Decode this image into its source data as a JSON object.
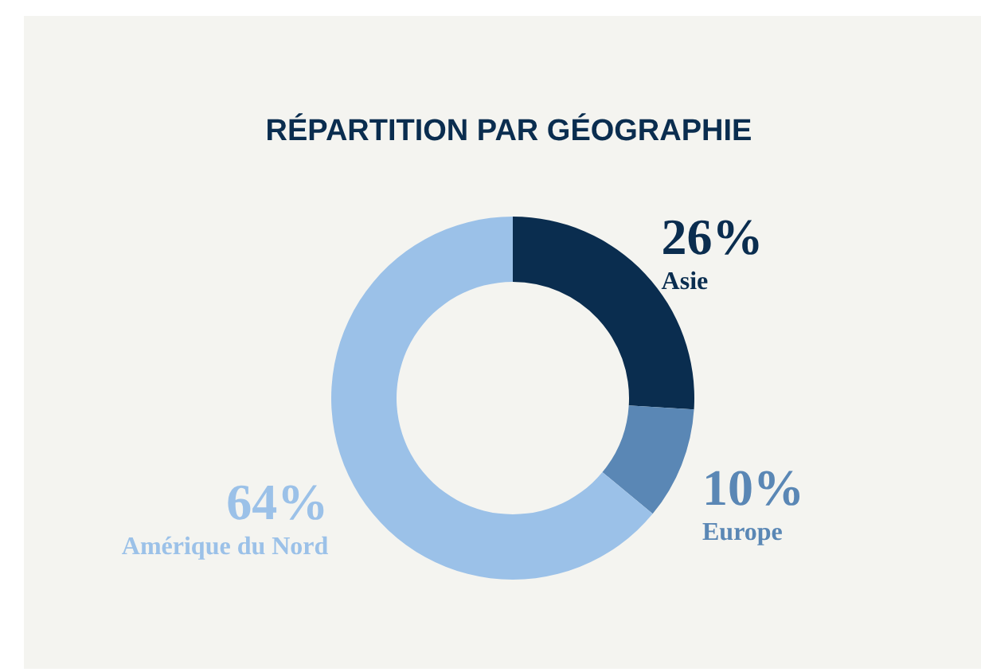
{
  "chart_data": {
    "type": "donut",
    "title": "RÉPARTITION PAR GÉOGRAPHIE",
    "categories": [
      "Asie",
      "Europe",
      "Amérique du Nord"
    ],
    "values": [
      26,
      10,
      64
    ],
    "colors": [
      "#0a2d4f",
      "#5a87b5",
      "#9bc1e8"
    ],
    "value_labels": [
      "26%",
      "10%",
      "64%"
    ]
  }
}
